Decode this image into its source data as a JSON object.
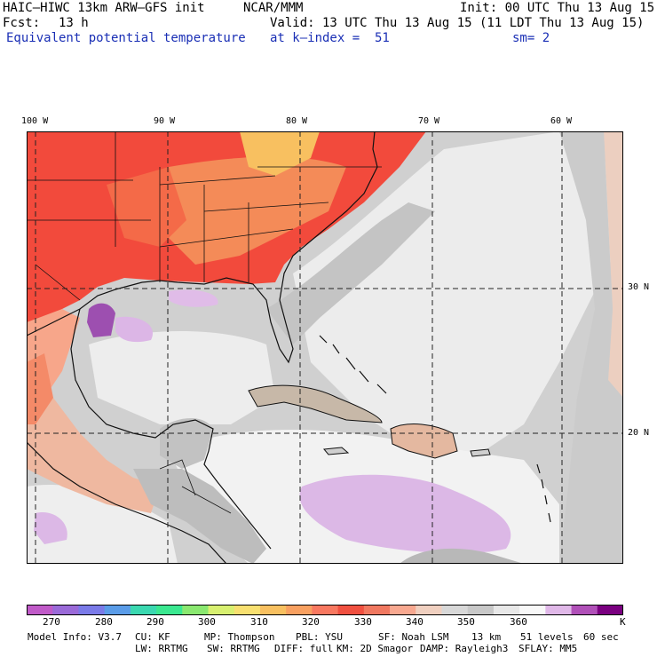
{
  "header": {
    "model": "HAIC–HIWC 13km ARW–GFS init",
    "org": "NCAR/MMM",
    "init": "Init: 00 UTC Thu 13 Aug 15",
    "fcst_label": "Fcst:",
    "fcst_value": "13 h",
    "valid": "Valid: 13 UTC Thu 13 Aug 15 (11 LDT Thu 13 Aug 15)",
    "field": "Equivalent potential temperature",
    "level": "at k–index =  51",
    "smoothing": "sm= 2"
  },
  "map": {
    "lon_labels": [
      "100 W",
      "90 W",
      "80 W",
      "70 W",
      "60 W"
    ],
    "lat_labels": [
      "30 N",
      "20 N"
    ]
  },
  "colorbar": {
    "ticks": [
      "270",
      "280",
      "290",
      "300",
      "310",
      "320",
      "330",
      "340",
      "350",
      "360"
    ],
    "units": "K",
    "colors": [
      "#c05ac8",
      "#9a6ad8",
      "#7a7ae8",
      "#5a9ce8",
      "#3ad8b0",
      "#3ae890",
      "#8ae870",
      "#d8f070",
      "#f8e070",
      "#f8c060",
      "#f8a060",
      "#f87860",
      "#f05040",
      "#f07860",
      "#f8a890",
      "#f0d0c0",
      "#d8d8d8",
      "#c8c8c8",
      "#e8e8e8",
      "#f8f8f8",
      "#e0b8e8",
      "#b050b8",
      "#7a0080"
    ]
  },
  "footer": {
    "line1": [
      "Model Info: V3.7",
      "CU: KF",
      "MP: Thompson",
      "PBL: YSU",
      "SF: Noah LSM",
      "13 km",
      "51 levels",
      "60 sec"
    ],
    "line2": [
      "LW: RRTMG",
      "SW: RRTMG",
      "DIFF: full",
      "KM: 2D Smagor",
      "DAMP: Rayleigh3",
      "SFLAY: MM5"
    ]
  }
}
